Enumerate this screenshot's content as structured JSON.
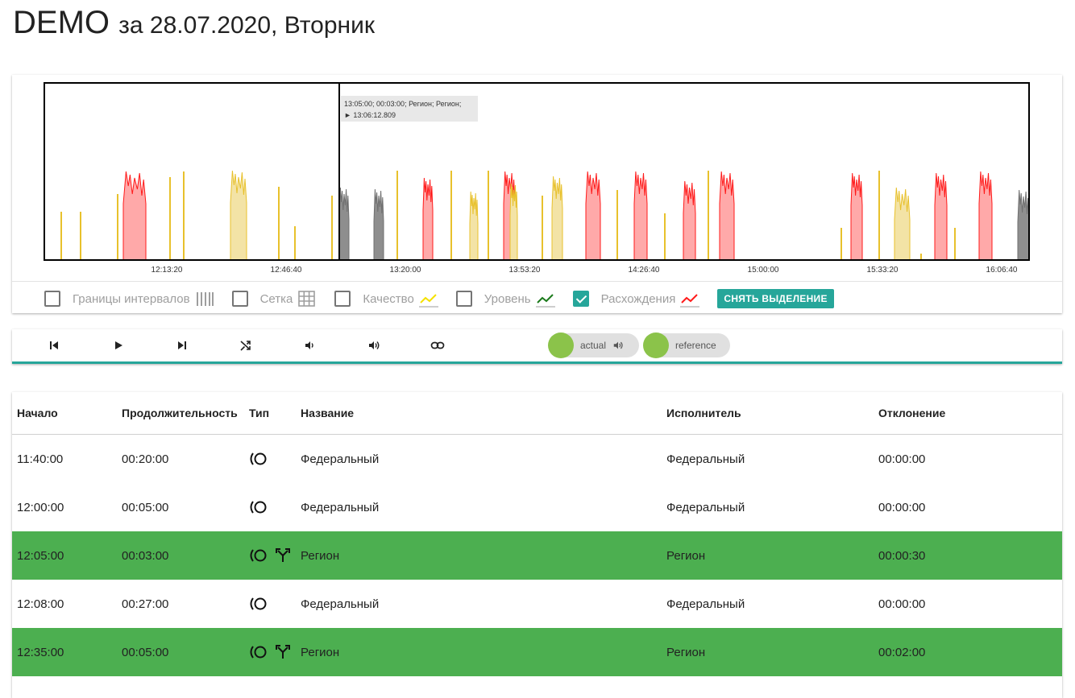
{
  "title": {
    "main": "DEMO",
    "sub": "за 28.07.2020, Вторник"
  },
  "chart": {
    "tooltip_line1": "13:05:00; 00:03:00; Регион; Регион;",
    "tooltip_line2": "► 13:06:12.809",
    "x_ticks": [
      "12:13:20",
      "12:46:40",
      "13:20:00",
      "13:53:20",
      "14:26:40",
      "15:00:00",
      "15:33:20",
      "16:06:40"
    ],
    "colors": {
      "quality": "#e8c12c",
      "quality_fill": "#f3e3a6",
      "discrepancy": "#ff1a1a",
      "discrepancy_fill": "#ffa9a9",
      "gray": "#707070",
      "gray_fill": "#8e8e8e"
    }
  },
  "options": {
    "boundaries": {
      "label": "Границы интервалов",
      "checked": false,
      "icon": "vertical-lines-icon"
    },
    "grid": {
      "label": "Сетка",
      "checked": false,
      "icon": "grid-icon"
    },
    "quality": {
      "label": "Качество",
      "checked": false,
      "icon": "yellow-line-icon"
    },
    "level": {
      "label": "Уровень",
      "checked": false,
      "icon": "green-line-icon"
    },
    "discrepancy": {
      "label": "Расхождения",
      "checked": true,
      "icon": "red-line-icon"
    },
    "clear_button": "СНЯТЬ ВЫДЕЛЕНИЕ"
  },
  "player": {
    "chips": [
      {
        "label": "actual",
        "icon": "volume-icon"
      },
      {
        "label": "reference"
      }
    ]
  },
  "table": {
    "headers": [
      "Начало",
      "Продолжительность",
      "Тип",
      "Название",
      "Исполнитель",
      "Отклонение"
    ],
    "rows": [
      {
        "start": "11:40:00",
        "duration": "00:20:00",
        "name": "Федеральный",
        "performer": "Федеральный",
        "deviation": "00:00:00",
        "highlight": false,
        "split": false
      },
      {
        "start": "12:00:00",
        "duration": "00:05:00",
        "name": "Федеральный",
        "performer": "Федеральный",
        "deviation": "00:00:00",
        "highlight": false,
        "split": false
      },
      {
        "start": "12:05:00",
        "duration": "00:03:00",
        "name": "Регион",
        "performer": "Регион",
        "deviation": "00:00:30",
        "highlight": true,
        "split": true
      },
      {
        "start": "12:08:00",
        "duration": "00:27:00",
        "name": "Федеральный",
        "performer": "Федеральный",
        "deviation": "00:00:00",
        "highlight": false,
        "split": false
      },
      {
        "start": "12:35:00",
        "duration": "00:05:00",
        "name": "Регион",
        "performer": "Регион",
        "deviation": "00:02:00",
        "highlight": true,
        "split": true
      }
    ]
  }
}
